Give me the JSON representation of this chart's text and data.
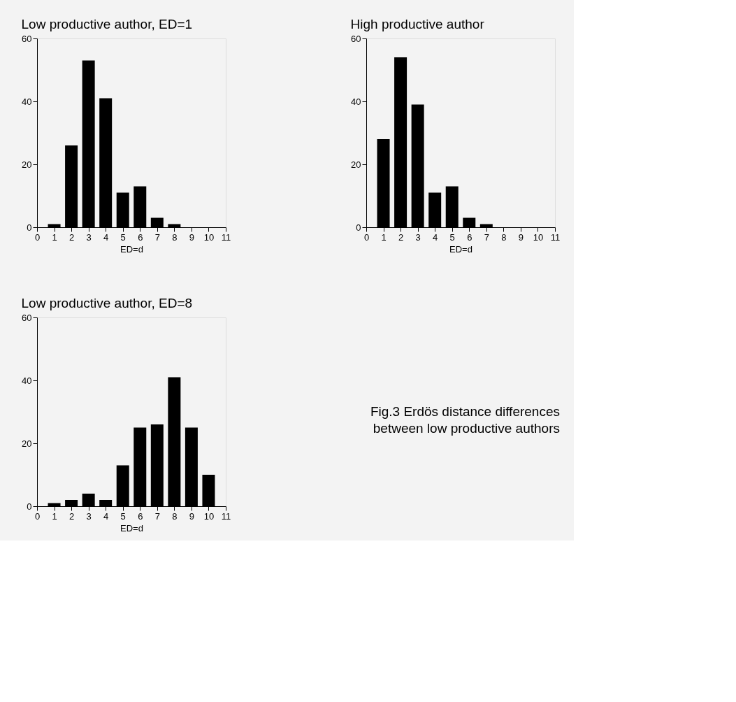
{
  "chart_data": [
    {
      "type": "bar",
      "title": "Low productive author, ED=1",
      "xlabel": "ED=d",
      "x": [
        1,
        2,
        3,
        4,
        5,
        6,
        7,
        8
      ],
      "values": [
        1,
        26,
        53,
        41,
        11,
        13,
        3,
        1
      ],
      "color": "#000000",
      "xlim": [
        0,
        11
      ],
      "xticks": [
        0,
        1,
        2,
        3,
        4,
        5,
        6,
        7,
        8,
        9,
        10,
        11
      ],
      "ylim": [
        0,
        60
      ],
      "yticks": [
        0,
        20,
        40,
        60
      ],
      "grid": false
    },
    {
      "type": "bar",
      "title": "High productive author",
      "xlabel": "ED=d",
      "x": [
        1,
        2,
        3,
        4,
        5,
        6,
        7
      ],
      "values": [
        28,
        54,
        39,
        11,
        13,
        3,
        1
      ],
      "color": "#000000",
      "xlim": [
        0,
        11
      ],
      "xticks": [
        0,
        1,
        2,
        3,
        4,
        5,
        6,
        7,
        8,
        9,
        10,
        11
      ],
      "ylim": [
        0,
        60
      ],
      "yticks": [
        0,
        20,
        40,
        60
      ],
      "grid": false
    },
    {
      "type": "bar",
      "title": "Low productive author, ED=8",
      "xlabel": "ED=d",
      "x": [
        1,
        2,
        3,
        4,
        5,
        6,
        7,
        8,
        9,
        10
      ],
      "values": [
        1,
        2,
        4,
        2,
        13,
        25,
        26,
        41,
        25,
        10
      ],
      "color": "#000000",
      "xlim": [
        0,
        11
      ],
      "xticks": [
        0,
        1,
        2,
        3,
        4,
        5,
        6,
        7,
        8,
        9,
        10,
        11
      ],
      "ylim": [
        0,
        60
      ],
      "yticks": [
        0,
        20,
        40,
        60
      ],
      "grid": false,
      "annotations": [
        "Fig.3 Erdös distance differences\nbetween low productive authors"
      ]
    }
  ]
}
